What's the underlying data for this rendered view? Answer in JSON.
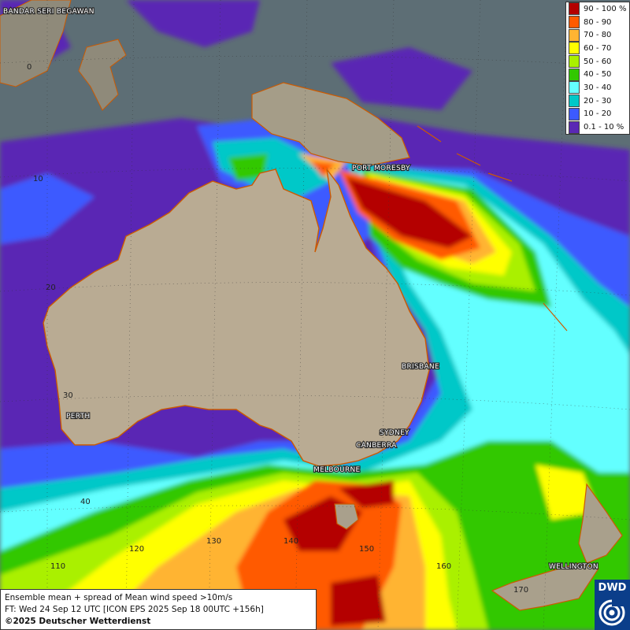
{
  "legend": [
    {
      "label": "90 - 100 %",
      "color": "#b40000"
    },
    {
      "label": "80 - 90",
      "color": "#ff5a00"
    },
    {
      "label": "70 - 80",
      "color": "#ffb432"
    },
    {
      "label": "60 - 70",
      "color": "#ffff00"
    },
    {
      "label": "50 - 60",
      "color": "#aaf000"
    },
    {
      "label": "40 - 50",
      "color": "#32c800"
    },
    {
      "label": "30 - 40",
      "color": "#64ffff"
    },
    {
      "label": "20 - 30",
      "color": "#00c8c8"
    },
    {
      "label": "10 - 20",
      "color": "#3c5aff"
    },
    {
      "label": "0.1 - 10 %",
      "color": "#5a28b4"
    }
  ],
  "cities": {
    "bandar": "BANDAR SERI BEGAWAN",
    "port_moresby": "PORT MORESBY",
    "brisbane": "BRISBANE",
    "perth": "PERTH",
    "sydney": "SYDNEY",
    "canberra": "CANBERRA",
    "melbourne": "MELBOURNE",
    "wellington": "WELLINGTON"
  },
  "grid_labels": {
    "lat0": "0",
    "lat10": "10",
    "lat20": "20",
    "lat30": "30",
    "lat40": "40",
    "lon110": "110",
    "lon120": "120",
    "lon130": "130",
    "lon140": "140",
    "lon150": "150",
    "lon160": "160",
    "lon170": "170"
  },
  "info": {
    "line1": "Ensemble mean + spread of Mean wind speed >10m/s",
    "line2": "FT: Wed 24 Sep 12 UTC [ICON EPS 2025 Sep 18 00UTC +156h]",
    "line3": "©2025 Deutscher Wetterdienst"
  },
  "logo": "DWD"
}
